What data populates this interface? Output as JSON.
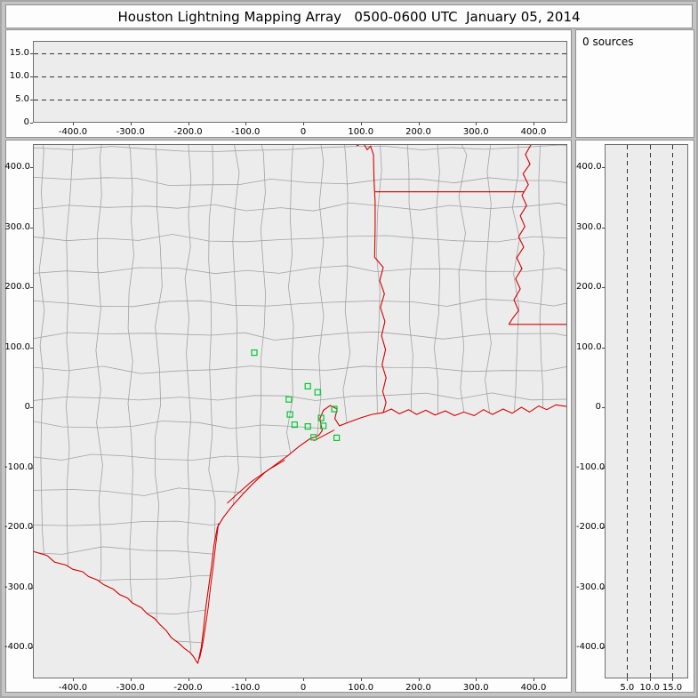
{
  "window": {
    "title": "Houston Lightning Mapping Array   0500-0600 UTC  January 05, 2014"
  },
  "sources_panel": {
    "label": "0 sources"
  },
  "sources_count": 0,
  "colors": {
    "window_background": "#c4c4c4",
    "panel_background": "#fdfdfd",
    "plot_background": "#ececec",
    "state_border_red": "#d40000",
    "county_line_gray": "#a2a2a2",
    "station_green": "#00c832",
    "gridline_dash": "#333333"
  },
  "chart_data": [
    {
      "type": "scatter",
      "panel": "altitude-vs-east-west",
      "x_tick_values": [
        -400,
        -300,
        -200,
        -100,
        0,
        100,
        200,
        300,
        400
      ],
      "x_tick_labels": [
        "-400.0",
        "-300.0",
        "-200.0",
        "-100.0",
        "0",
        "100.0",
        "200.0",
        "300.0",
        "400.0"
      ],
      "y_tick_values": [
        0,
        5,
        10,
        15
      ],
      "y_tick_labels": [
        "0",
        "5.0",
        "10.0",
        "15.0"
      ],
      "xlim": [
        -468,
        456
      ],
      "ylim": [
        0,
        17.7
      ],
      "grid": "horizontal dashed lines at 5, 10, 15 km altitude",
      "points": []
    },
    {
      "type": "scatter",
      "panel": "plan-view-map",
      "x_tick_values": [
        -400,
        -300,
        -200,
        -100,
        0,
        100,
        200,
        300,
        400
      ],
      "x_tick_labels": [
        "-400.0",
        "-300.0",
        "-200.0",
        "-100.0",
        "0",
        "100.0",
        "200.0",
        "300.0",
        "400.0"
      ],
      "y_tick_values": [
        400,
        300,
        200,
        100,
        0,
        -100,
        -200,
        -300,
        -400
      ],
      "y_tick_labels": [
        "400.0",
        "300.0",
        "200.0",
        "100.0",
        "0",
        "-100.0",
        "-200.0",
        "-300.0",
        "-400.0"
      ],
      "xlim": [
        -468,
        456
      ],
      "ylim": [
        -452,
        438
      ],
      "map_features": "County outlines in gray; state borders, rivers and Gulf of Mexico coastline in red; LMA station markers as green squares",
      "station_markers_km": [
        [
          -85,
          91
        ],
        [
          -25,
          13
        ],
        [
          8,
          35
        ],
        [
          25,
          25
        ],
        [
          -23,
          -12
        ],
        [
          -15,
          -29
        ],
        [
          8,
          -32
        ],
        [
          31,
          -18
        ],
        [
          18,
          -50
        ],
        [
          54,
          -3
        ],
        [
          58,
          -51
        ],
        [
          35,
          -31
        ]
      ],
      "points": []
    },
    {
      "type": "scatter",
      "panel": "altitude-vs-north-south",
      "x_tick_values": [
        5,
        10,
        15
      ],
      "x_tick_labels": [
        "5.0",
        "10.0",
        "15.0"
      ],
      "y_tick_values": [
        400,
        300,
        200,
        100,
        0,
        -100,
        -200,
        -300,
        -400
      ],
      "y_tick_labels": [
        "400.0",
        "300.0",
        "200.0",
        "100.0",
        "0",
        "-100.0",
        "-200.0",
        "-300.0",
        "-400.0"
      ],
      "xlim": [
        0,
        18.5
      ],
      "ylim": [
        -452,
        438
      ],
      "grid": "vertical dashed lines at 5, 10, 15 km altitude",
      "points": []
    }
  ]
}
